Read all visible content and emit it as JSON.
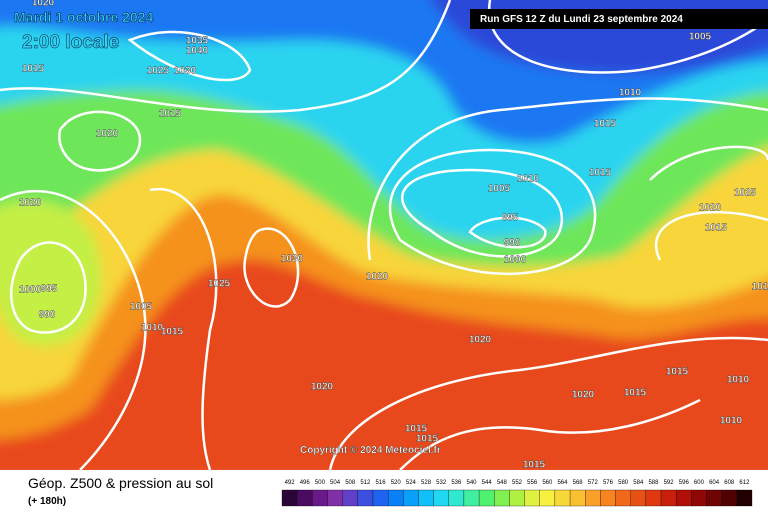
{
  "header": {
    "date": "Mardi 1 octobre 2024",
    "time": "2:00 locale",
    "run": "Run GFS 12 Z du Lundi 23 septembre 2024"
  },
  "copyright": "Copyright © 2024 Meteociel.fr",
  "isobar_labels": [
    "1020",
    "1035",
    "1040",
    "1015",
    "1025",
    "1030",
    "1015",
    "1020",
    "1020",
    "1030",
    "1025",
    "1000",
    "995",
    "990",
    "1005",
    "1010",
    "1015",
    "1020",
    "1005",
    "1010",
    "1015",
    "1015",
    "1010",
    "1005",
    "995",
    "990",
    "1000",
    "1025",
    "1020",
    "1015",
    "1020",
    "1020",
    "1020",
    "1015",
    "1015",
    "1010",
    "1010",
    "1015",
    "1015",
    "1015",
    "101"
  ],
  "legend": {
    "title": "Géop. Z500 & pression au sol",
    "subtitle": "(+ 180h)",
    "scale": [
      "492",
      "496",
      "500",
      "504",
      "508",
      "512",
      "516",
      "520",
      "524",
      "528",
      "532",
      "536",
      "540",
      "544",
      "548",
      "552",
      "556",
      "560",
      "564",
      "568",
      "572",
      "576",
      "580",
      "584",
      "588",
      "592",
      "596",
      "600",
      "604",
      "608",
      "612"
    ],
    "colors": [
      "#2a0638",
      "#4a0c60",
      "#6a1a88",
      "#8230a8",
      "#6040c8",
      "#3c50e0",
      "#1e64f0",
      "#0a80f8",
      "#0aa0fa",
      "#10c0f8",
      "#20d8f0",
      "#30e8d0",
      "#40f0a0",
      "#50f070",
      "#80f050",
      "#b0f040",
      "#e0f040",
      "#f8f040",
      "#f8d838",
      "#f8c030",
      "#f8a028",
      "#f88420",
      "#f06818",
      "#e85014",
      "#e03810",
      "#c8200c",
      "#b01008",
      "#900806",
      "#700404",
      "#500202",
      "#200000"
    ]
  }
}
